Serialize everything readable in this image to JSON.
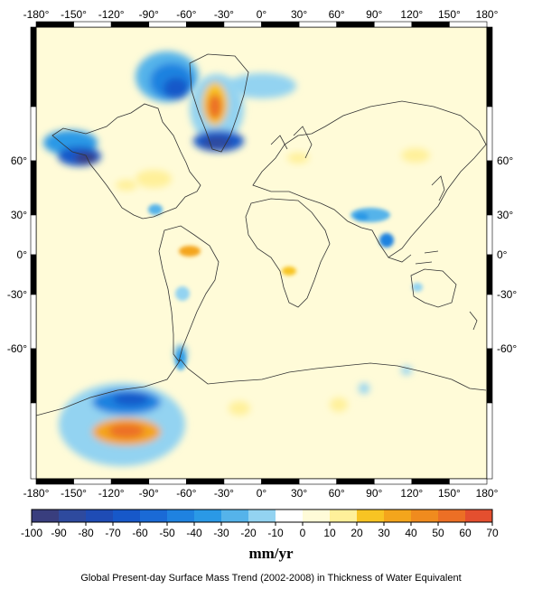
{
  "map": {
    "lon_ticks": [
      "-180°",
      "-150°",
      "-120°",
      "-90°",
      "-60°",
      "-30°",
      "0°",
      "30°",
      "60°",
      "90°",
      "120°",
      "150°",
      "180°"
    ],
    "lat_ticks_left": [
      "60°",
      "30°",
      "0°",
      "-30°",
      "-60°"
    ],
    "lat_ticks_right": [
      "60°",
      "30°",
      "0°",
      "-30°",
      "-60°"
    ],
    "background_color": "#fffbd8",
    "coastline_color": "#333333"
  },
  "colorbar": {
    "tick_labels": [
      "-100",
      "-90",
      "-80",
      "-70",
      "-60",
      "-50",
      "-40",
      "-30",
      "-20",
      "-10",
      "0",
      "10",
      "20",
      "30",
      "40",
      "50",
      "60",
      "70"
    ],
    "colors": [
      "#393e7e",
      "#2e4a9e",
      "#1f4cb5",
      "#1758c9",
      "#1a6ad6",
      "#1f82e0",
      "#2a99e6",
      "#55b3ea",
      "#93d3f1",
      "#ffffff",
      "#fffbd8",
      "#fff09a",
      "#f8c423",
      "#f4a51c",
      "#f08b1e",
      "#ec6f25",
      "#e44f2f"
    ],
    "unit": "mm/yr"
  },
  "caption": "Global Present-day Surface Mass Trend (2002-2008) in Thickness of Water Equivalent",
  "anomalies": [
    {
      "region": "alaska",
      "value": -60
    },
    {
      "region": "greenland-west",
      "value": -55
    },
    {
      "region": "greenland-south",
      "value": -65
    },
    {
      "region": "greenland-interior",
      "value": 45
    },
    {
      "region": "hudson-bay",
      "value": 20
    },
    {
      "region": "amundsen-sea",
      "value": -60
    },
    {
      "region": "west-antarctica-coast",
      "value": 55
    },
    {
      "region": "bay-of-bengal",
      "value": -40
    },
    {
      "region": "amazon",
      "value": 30
    },
    {
      "region": "southern-patagonia",
      "value": -30
    }
  ]
}
